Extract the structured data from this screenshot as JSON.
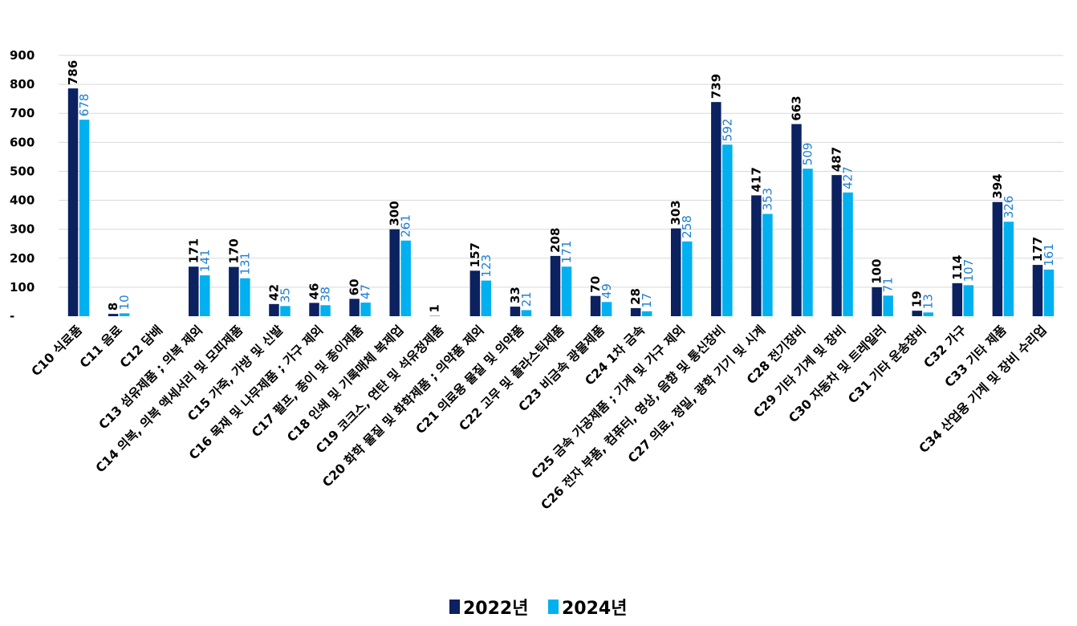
{
  "chart_data": {
    "type": "bar",
    "categories": [
      "C10 식료품",
      "C11 음료",
      "C12 담배",
      "C13 섬유제품 ; 의복 제외",
      "C14 의복, 의복 액세서리 및 모피제품",
      "C15 가죽, 가방 및 신발",
      "C16 목재 및 나무제품 ; 가구 제외",
      "C17 펄프, 종이 및 종이제품",
      "C18 인쇄 및 기록매체 복제업",
      "C19 코크스, 연탄 및 석유정제품",
      "C20 화학 물질 및 화학제품 ; 의약품 제외",
      "C21 의료용 물질 및 의약품",
      "C22 고무 및 플라스틱제품",
      "C23 비금속 광물제품",
      "C24 1차 금속",
      "C25 금속 가공제품 ; 기계 및 가구 제외",
      "C26 전자 부품, 컴퓨터, 영상, 음향 및 통신장비",
      "C27 의료, 정밀, 광학 기기 및 시계",
      "C28 전기장비",
      "C29 기타 기계 및 장비",
      "C30 자동차 및 트레일러",
      "C31 기타 운송장비",
      "C32 가구",
      "C33 기타 제품",
      "C34 산업용 기계 및 장비 수리업"
    ],
    "series": [
      {
        "name": "2022년",
        "color": "#0b2160",
        "values": [
          786,
          8,
          null,
          171,
          170,
          42,
          46,
          60,
          300,
          1,
          157,
          33,
          208,
          70,
          28,
          303,
          739,
          417,
          663,
          487,
          100,
          19,
          114,
          394,
          177
        ]
      },
      {
        "name": "2024년",
        "color": "#00b0f0",
        "values": [
          678,
          10,
          null,
          141,
          131,
          35,
          38,
          47,
          261,
          null,
          123,
          21,
          171,
          49,
          17,
          258,
          592,
          353,
          509,
          427,
          71,
          13,
          107,
          326,
          161
        ]
      }
    ],
    "y_ticks": [
      "-",
      "100",
      "200",
      "300",
      "400",
      "500",
      "600",
      "700",
      "800",
      "900"
    ],
    "ylim": [
      0,
      900
    ],
    "grid": true,
    "legend_position": "bottom-center",
    "label_color_2024": "#1f7fd1"
  }
}
